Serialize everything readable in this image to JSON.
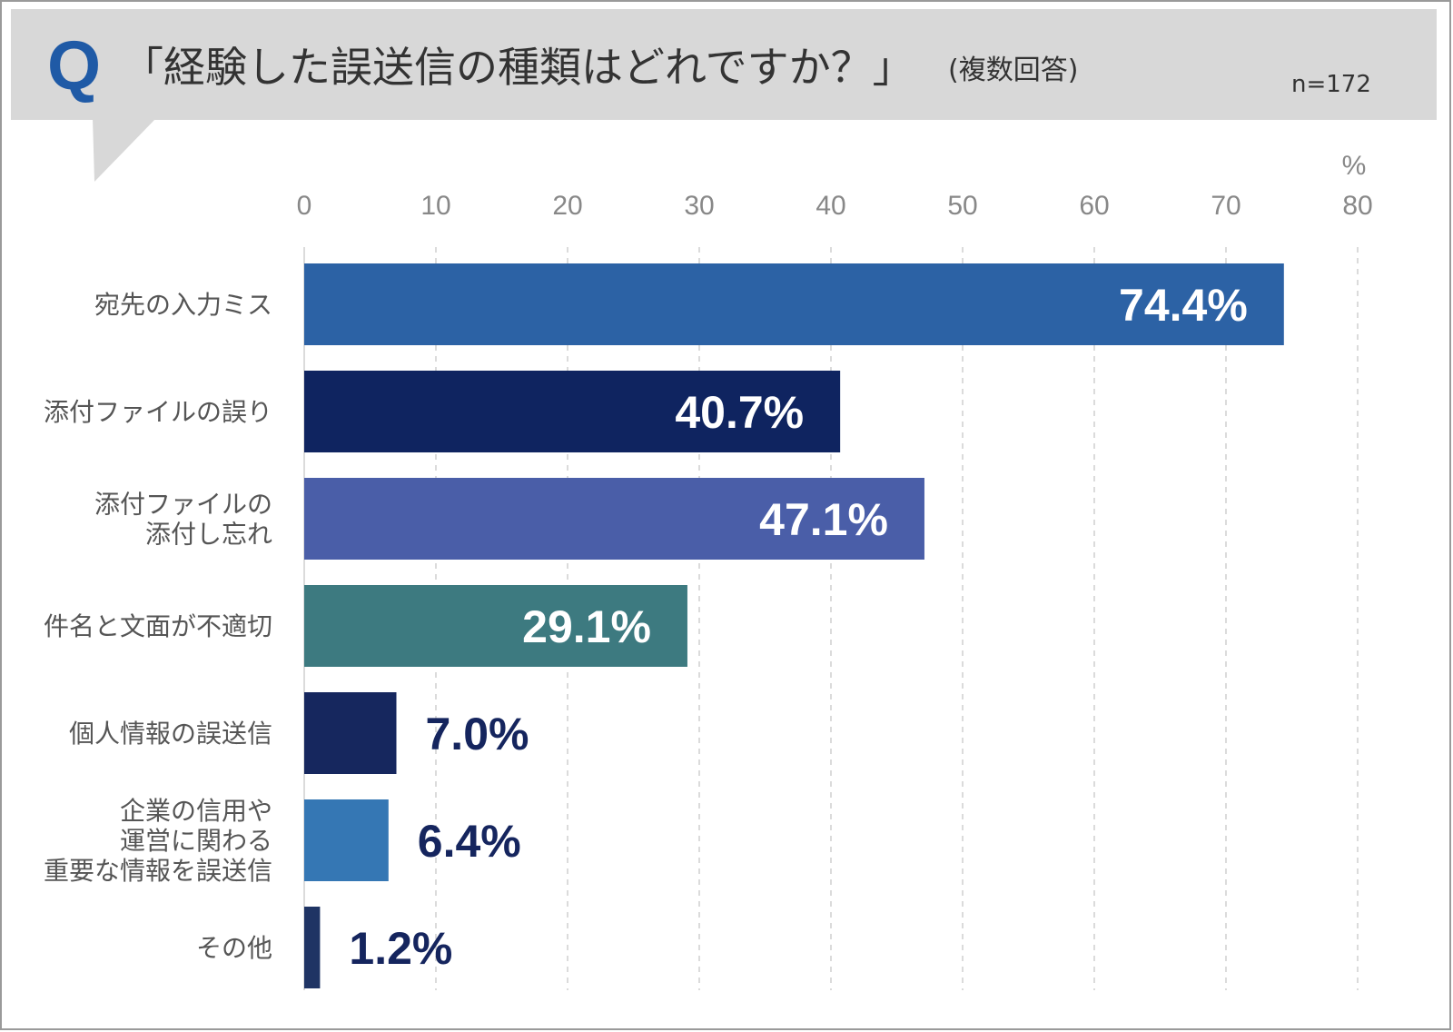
{
  "header": {
    "q_mark": "Q",
    "question": "「経験した誤送信の種類はどれですか？」",
    "note": "(複数回答)",
    "sample": "n=172"
  },
  "colors": {
    "bubble": "#d8d8d8",
    "q_mark": "#1f5aa6",
    "grid": "#cfcfcf",
    "label_inside": "#ffffff",
    "label_outside": "#15255e"
  },
  "chart_data": {
    "type": "bar",
    "orientation": "horizontal",
    "unit": "%",
    "xlim": [
      0,
      80
    ],
    "xticks": [
      0,
      10,
      20,
      30,
      40,
      50,
      60,
      70,
      80
    ],
    "grid": "vertical dashed",
    "categories": [
      [
        "宛先の入力ミス"
      ],
      [
        "添付ファイルの誤り"
      ],
      [
        "添付ファイルの",
        "添付し忘れ"
      ],
      [
        "件名と文面が不適切"
      ],
      [
        "個人情報の誤送信"
      ],
      [
        "企業の信用や",
        "運営に関わる",
        "重要な情報を誤送信"
      ],
      [
        "その他"
      ]
    ],
    "values": [
      74.4,
      40.7,
      47.1,
      29.1,
      7.0,
      6.4,
      1.2
    ],
    "labels": [
      "74.4%",
      "40.7%",
      "47.1%",
      "29.1%",
      "7.0%",
      "6.4%",
      "1.2%"
    ],
    "bar_colors": [
      "#2c62a5",
      "#0f2460",
      "#4a5ea8",
      "#3d7a80",
      "#16275e",
      "#3577b4",
      "#1f3464"
    ],
    "label_inside": [
      true,
      true,
      true,
      true,
      false,
      false,
      false
    ]
  }
}
